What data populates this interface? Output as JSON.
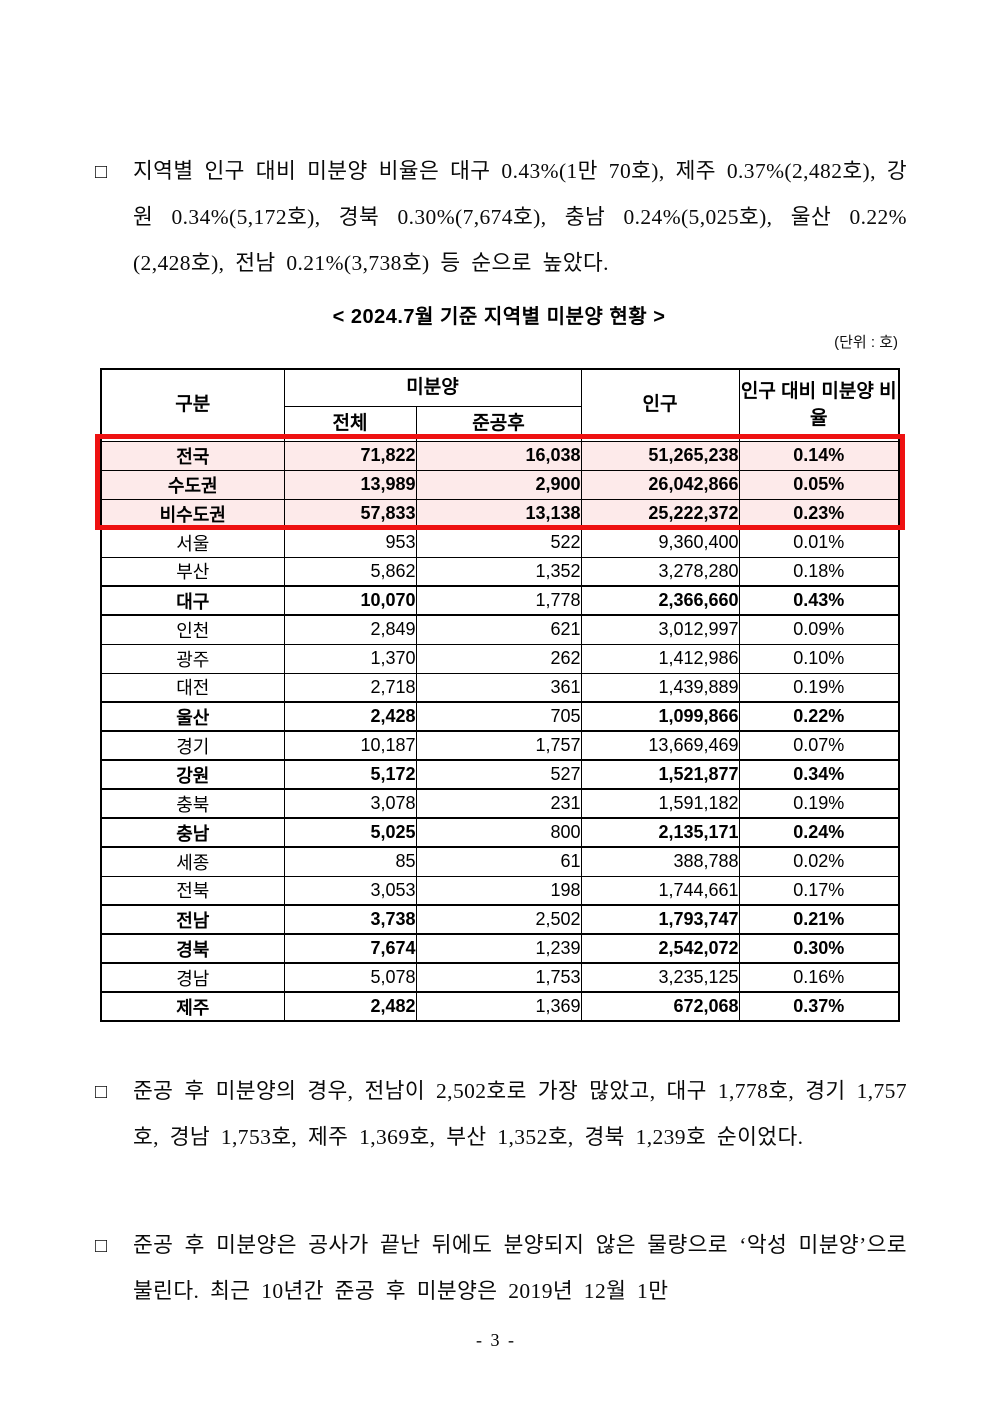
{
  "paragraphs": [
    {
      "bullet": "□",
      "text": "지역별 인구 대비 미분양 비율은 대구 0.43%(1만 70호), 제주 0.37%(2,482호), 강원 0.34%(5,172호), 경북 0.30%(7,674호), 충남 0.24%(5,025호), 울산 0.22%(2,428호), 전남 0.21%(3,738호) 등 순으로 높았다."
    },
    {
      "bullet": "□",
      "text": "준공 후 미분양의 경우, 전남이 2,502호로 가장 많았고, 대구 1,778호, 경기 1,757호, 경남 1,753호, 제주 1,369호, 부산 1,352호, 경북 1,239호 순이었다."
    },
    {
      "bullet": "□",
      "text": "준공 후 미분양은 공사가 끝난 뒤에도 분양되지 않은 물량으로 ‘악성 미분양’으로 불린다. 최근 10년간 준공 후 미분양은 2019년 12월 1만"
    }
  ],
  "table": {
    "title": "< 2024.7월 기준 지역별 미분양 현황 >",
    "unit_label": "(단위 : 호)",
    "headers": {
      "category": "구분",
      "unsold_group": "미분양",
      "total": "전체",
      "after_completion": "준공후",
      "population": "인구",
      "ratio": "인구 대비 미분양 비율"
    },
    "rows": [
      {
        "region": "전국",
        "total": "71,822",
        "completed": "16,038",
        "population": "51,265,238",
        "ratio": "0.14%",
        "highlight": true,
        "emphasis": false
      },
      {
        "region": "수도권",
        "total": "13,989",
        "completed": "2,900",
        "population": "26,042,866",
        "ratio": "0.05%",
        "highlight": true,
        "emphasis": false
      },
      {
        "region": "비수도권",
        "total": "57,833",
        "completed": "13,138",
        "population": "25,222,372",
        "ratio": "0.23%",
        "highlight": true,
        "emphasis": false
      },
      {
        "region": "서울",
        "total": "953",
        "completed": "522",
        "population": "9,360,400",
        "ratio": "0.01%",
        "highlight": false,
        "emphasis": false
      },
      {
        "region": "부산",
        "total": "5,862",
        "completed": "1,352",
        "population": "3,278,280",
        "ratio": "0.18%",
        "highlight": false,
        "emphasis": false
      },
      {
        "region": "대구",
        "total": "10,070",
        "completed": "1,778",
        "population": "2,366,660",
        "ratio": "0.43%",
        "highlight": false,
        "emphasis": true
      },
      {
        "region": "인천",
        "total": "2,849",
        "completed": "621",
        "population": "3,012,997",
        "ratio": "0.09%",
        "highlight": false,
        "emphasis": false
      },
      {
        "region": "광주",
        "total": "1,370",
        "completed": "262",
        "population": "1,412,986",
        "ratio": "0.10%",
        "highlight": false,
        "emphasis": false
      },
      {
        "region": "대전",
        "total": "2,718",
        "completed": "361",
        "population": "1,439,889",
        "ratio": "0.19%",
        "highlight": false,
        "emphasis": false
      },
      {
        "region": "울산",
        "total": "2,428",
        "completed": "705",
        "population": "1,099,866",
        "ratio": "0.22%",
        "highlight": false,
        "emphasis": true
      },
      {
        "region": "경기",
        "total": "10,187",
        "completed": "1,757",
        "population": "13,669,469",
        "ratio": "0.07%",
        "highlight": false,
        "emphasis": false
      },
      {
        "region": "강원",
        "total": "5,172",
        "completed": "527",
        "population": "1,521,877",
        "ratio": "0.34%",
        "highlight": false,
        "emphasis": true
      },
      {
        "region": "충북",
        "total": "3,078",
        "completed": "231",
        "population": "1,591,182",
        "ratio": "0.19%",
        "highlight": false,
        "emphasis": false
      },
      {
        "region": "충남",
        "total": "5,025",
        "completed": "800",
        "population": "2,135,171",
        "ratio": "0.24%",
        "highlight": false,
        "emphasis": true
      },
      {
        "region": "세종",
        "total": "85",
        "completed": "61",
        "population": "388,788",
        "ratio": "0.02%",
        "highlight": false,
        "emphasis": false
      },
      {
        "region": "전북",
        "total": "3,053",
        "completed": "198",
        "population": "1,744,661",
        "ratio": "0.17%",
        "highlight": false,
        "emphasis": false
      },
      {
        "region": "전남",
        "total": "3,738",
        "completed": "2,502",
        "population": "1,793,747",
        "ratio": "0.21%",
        "highlight": false,
        "emphasis": true
      },
      {
        "region": "경북",
        "total": "7,674",
        "completed": "1,239",
        "population": "2,542,072",
        "ratio": "0.30%",
        "highlight": false,
        "emphasis": true
      },
      {
        "region": "경남",
        "total": "5,078",
        "completed": "1,753",
        "population": "3,235,125",
        "ratio": "0.16%",
        "highlight": false,
        "emphasis": false
      },
      {
        "region": "제주",
        "total": "2,482",
        "completed": "1,369",
        "population": "672,068",
        "ratio": "0.37%",
        "highlight": false,
        "emphasis": true
      }
    ]
  },
  "colors": {
    "highlight_bg": "#fdeaea",
    "highlight_border": "#ee1111"
  },
  "footer": {
    "page_number": "- 3 -"
  }
}
